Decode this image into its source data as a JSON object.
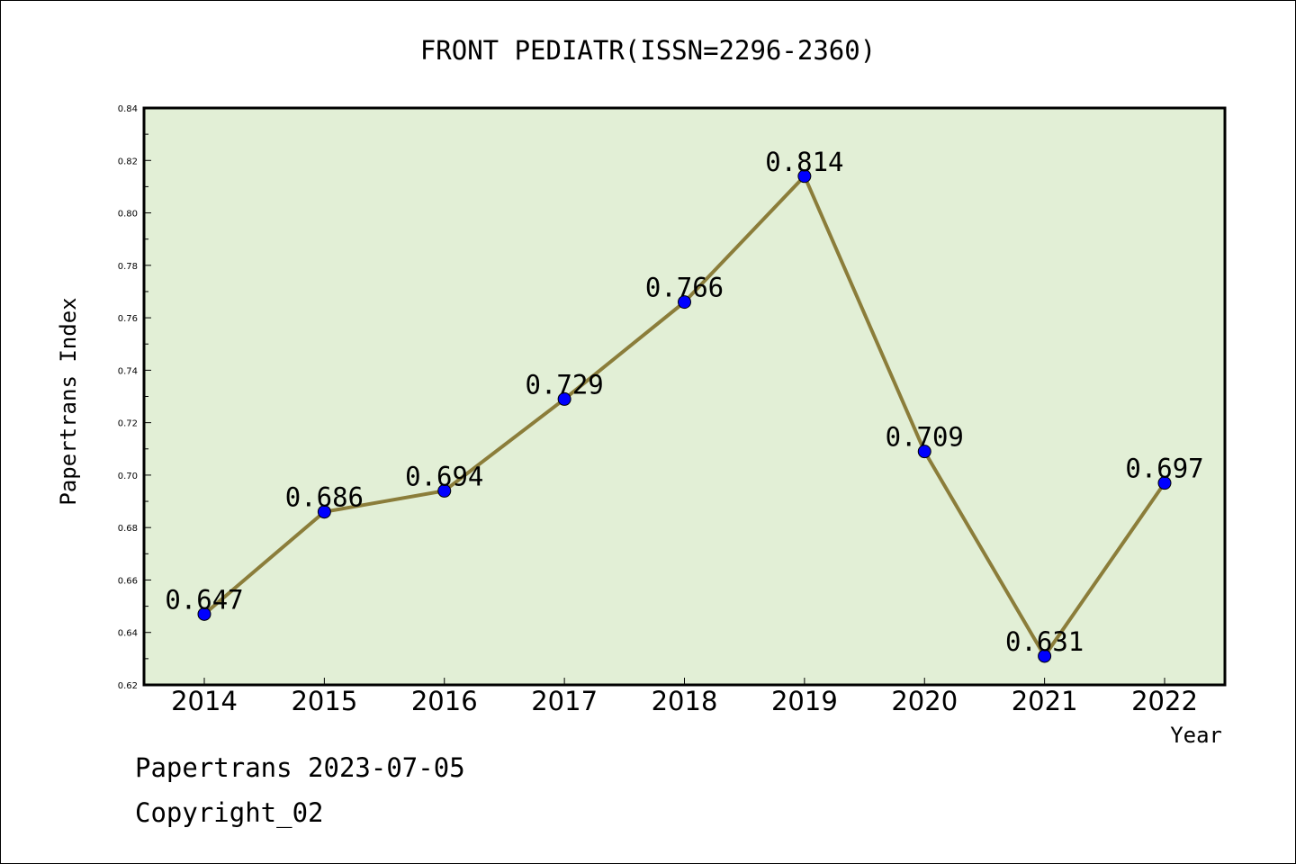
{
  "title": "FRONT PEDIATR(ISSN=2296-2360)",
  "footer": {
    "line1": "Papertrans 2023-07-05",
    "line2": "Copyright_02"
  },
  "colors": {
    "plot_background": "#e2efd6",
    "line": "#8b7d3a",
    "marker": "#0000ff"
  },
  "chart_data": {
    "type": "line",
    "title": "FRONT PEDIATR(ISSN=2296-2360)",
    "xlabel": "Year",
    "ylabel": "Papertrans Index",
    "categories": [
      "2014",
      "2015",
      "2016",
      "2017",
      "2018",
      "2019",
      "2020",
      "2021",
      "2022"
    ],
    "values": [
      0.647,
      0.686,
      0.694,
      0.729,
      0.766,
      0.814,
      0.709,
      0.631,
      0.697
    ],
    "data_labels": [
      "0.647",
      "0.686",
      "0.694",
      "0.729",
      "0.766",
      "0.814",
      "0.709",
      "0.631",
      "0.697"
    ],
    "ylim": [
      0.62,
      0.84
    ],
    "yticks": [
      "0.62",
      "0.64",
      "0.66",
      "0.68",
      "0.70",
      "0.72",
      "0.74",
      "0.76",
      "0.78",
      "0.80",
      "0.82",
      "0.84"
    ],
    "grid": false,
    "legend": "none"
  }
}
